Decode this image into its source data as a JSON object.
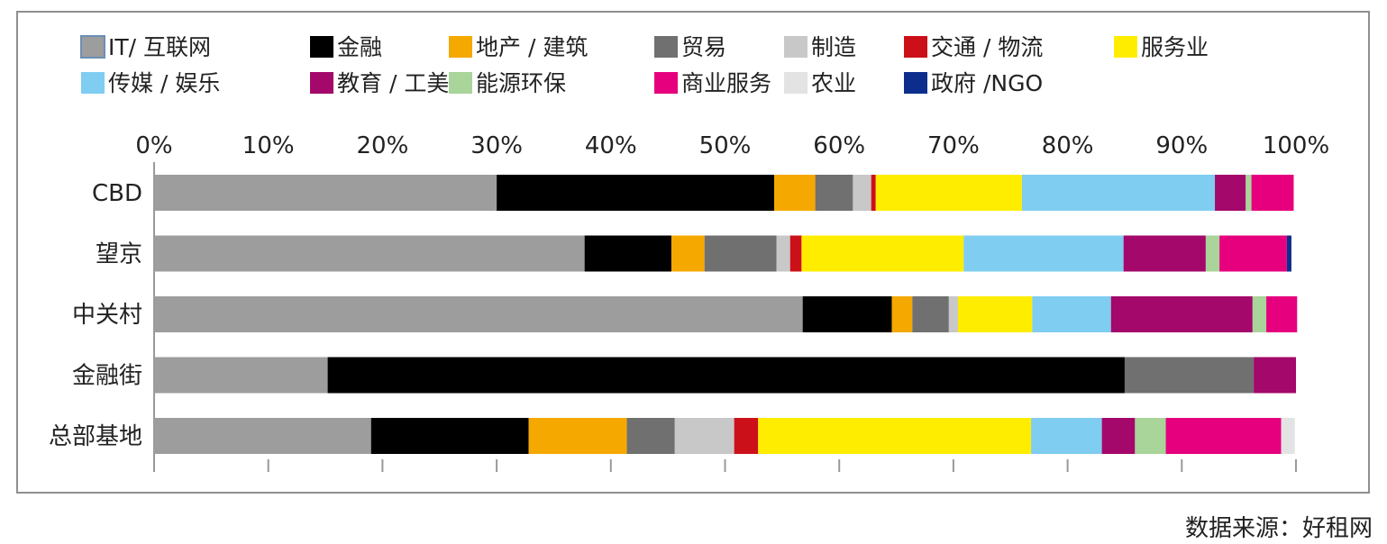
{
  "source_note": "数据来源：好租网",
  "chart_data": {
    "type": "bar",
    "orientation": "horizontal",
    "stacked": true,
    "percent": true,
    "xlim": [
      0,
      100
    ],
    "x_ticks": [
      "0%",
      "10%",
      "20%",
      "30%",
      "40%",
      "50%",
      "60%",
      "70%",
      "80%",
      "90%",
      "100%"
    ],
    "legend_position": "top",
    "grid": false,
    "categories": [
      "CBD",
      "望京",
      "中关村",
      "金融街",
      "总部基地"
    ],
    "series": [
      {
        "name": "IT/ 互联网",
        "color": "#9d9d9d",
        "values": [
          30.0,
          37.7,
          56.8,
          15.2,
          19.0
        ]
      },
      {
        "name": "金融",
        "color": "#000000",
        "values": [
          24.3,
          7.6,
          7.8,
          69.8,
          13.8
        ]
      },
      {
        "name": "地产 / 建筑",
        "color": "#f5a800",
        "values": [
          3.6,
          2.9,
          1.8,
          0.0,
          8.6
        ]
      },
      {
        "name": "贸易",
        "color": "#707070",
        "values": [
          3.3,
          6.3,
          3.2,
          11.3,
          4.2
        ]
      },
      {
        "name": "制造",
        "color": "#c8c8c8",
        "values": [
          1.6,
          1.2,
          0.8,
          0.0,
          5.2
        ]
      },
      {
        "name": "交通 / 物流",
        "color": "#cc1019",
        "values": [
          0.4,
          1.0,
          0.0,
          0.0,
          2.1
        ]
      },
      {
        "name": "服务业",
        "color": "#ffed00",
        "values": [
          12.8,
          14.2,
          6.5,
          0.0,
          23.9
        ]
      },
      {
        "name": "传媒 / 娱乐",
        "color": "#7fcdf0",
        "values": [
          16.9,
          14.0,
          6.9,
          0.0,
          6.2
        ]
      },
      {
        "name": "教育 / 工美",
        "color": "#a3086a",
        "values": [
          2.7,
          7.2,
          12.4,
          3.7,
          2.9
        ]
      },
      {
        "name": "能源环保",
        "color": "#a9d49a",
        "values": [
          0.5,
          1.2,
          1.2,
          0.0,
          2.7
        ]
      },
      {
        "name": "商业服务",
        "color": "#e6007e",
        "values": [
          3.7,
          5.9,
          2.7,
          0.0,
          10.1
        ]
      },
      {
        "name": "农业",
        "color": "#e3e3e3",
        "values": [
          0.0,
          0.0,
          0.0,
          0.0,
          1.2
        ]
      },
      {
        "name": "政府 /NGO",
        "color": "#0d2d8c",
        "values": [
          0.0,
          0.4,
          0.0,
          0.0,
          0.0
        ]
      }
    ]
  }
}
